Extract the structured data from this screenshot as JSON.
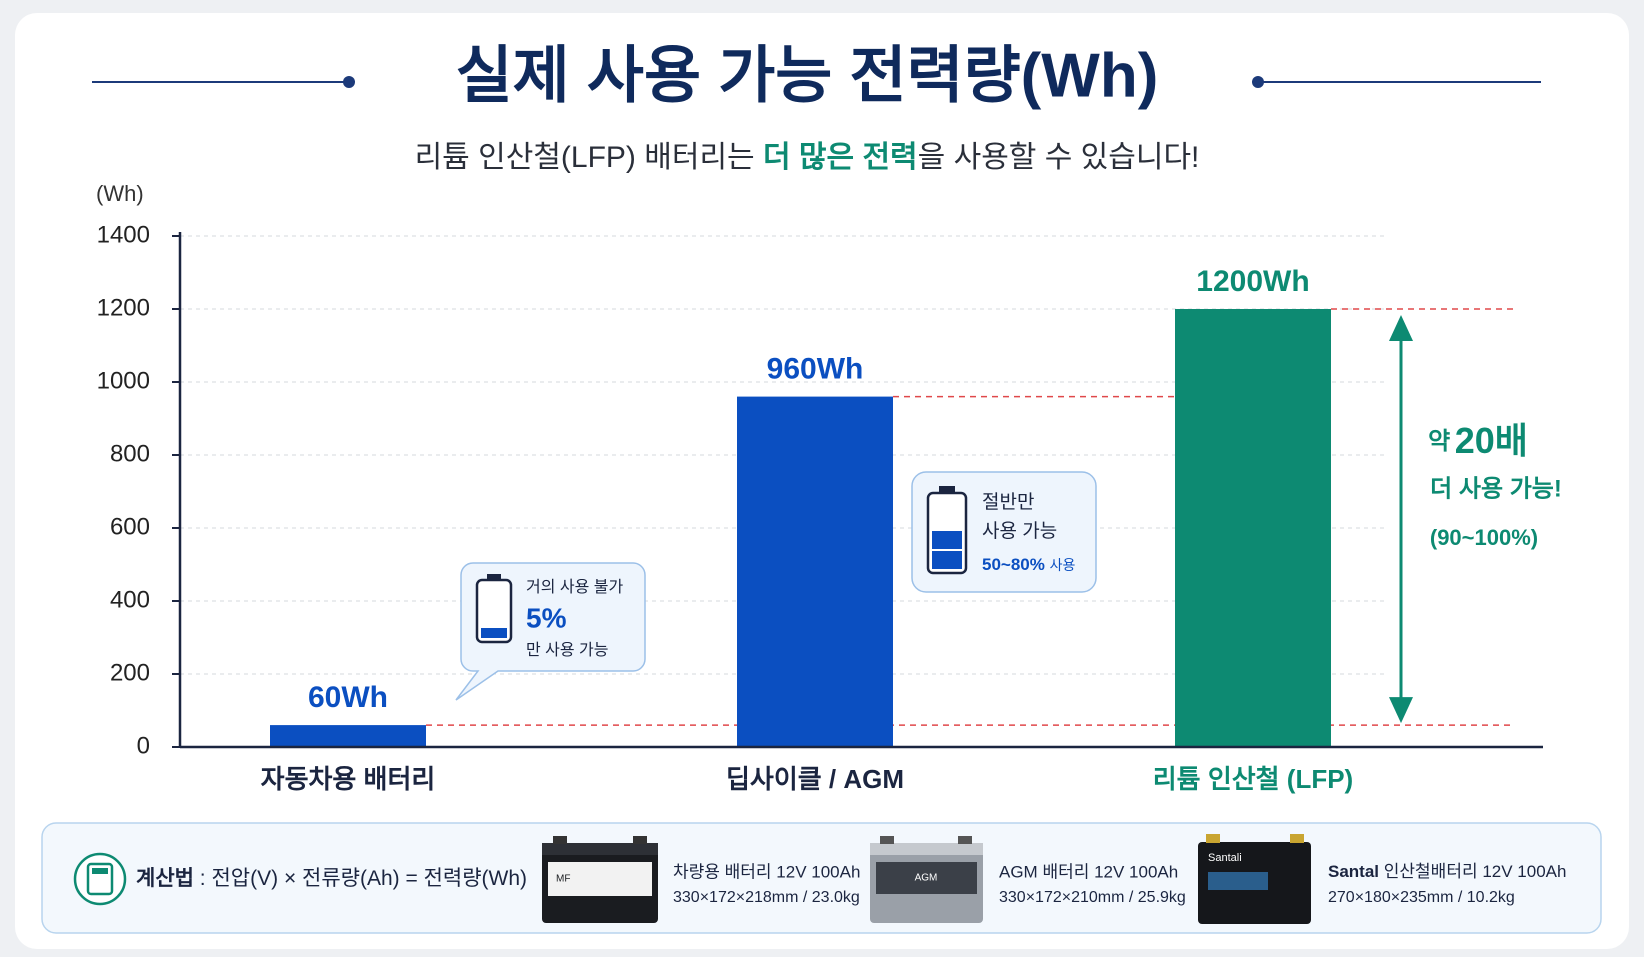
{
  "chart_data": {
    "type": "bar",
    "title": "실제 사용 가능 전력량(Wh)",
    "subtitle": {
      "before": "리튬 인산철(LFP) 배터리는 ",
      "highlight": "더 많은 전력",
      "after": "을 사용할 수 있습니다!"
    },
    "y_label": "(Wh)",
    "categories": [
      "자동차용 배터리",
      "딥사이클 / AGM",
      "리튬 인산철 (LFP)"
    ],
    "values": [
      60,
      960,
      1200
    ],
    "value_labels": [
      "60Wh",
      "960Wh",
      "1200Wh"
    ],
    "colors": [
      "#0b4fc1",
      "#0b4fc1",
      "#0d8a72"
    ],
    "label_colors": [
      "#1b2540",
      "#1b2540",
      "#0d8a72"
    ],
    "ylim": [
      0,
      1400
    ],
    "yticks": [
      0,
      200,
      400,
      600,
      800,
      1000,
      1200,
      1400
    ],
    "grid": true,
    "annotations": {
      "low": {
        "line1": "거의 사용 불가",
        "pct": "5%",
        "line2": "만 사용 가능"
      },
      "mid": {
        "line1": "절반만",
        "line2": "사용 가능",
        "pct": "50~80%",
        "suffix": "사용"
      },
      "gain": {
        "prefix": "약",
        "times": "20배",
        "line2": "더 사용 가능!",
        "line3": "(90~100%)"
      }
    }
  },
  "footer": {
    "label": "계산법",
    "formula": " : 전압(V) × 전류량(Ah) = 전력량(Wh)",
    "products": [
      {
        "badge": "MF",
        "name": "차량용 배터리 12V 100Ah",
        "spec": "330×172×218mm / 23.0kg"
      },
      {
        "badge": "AGM",
        "name": "AGM 배터리 12V 100Ah",
        "spec": "330×172×210mm / 25.9kg"
      },
      {
        "badge": "Santali",
        "brand": "Santal",
        "name": "인산철배터리 12V 100Ah",
        "spec": "270×180×235mm / 10.2kg"
      }
    ]
  }
}
